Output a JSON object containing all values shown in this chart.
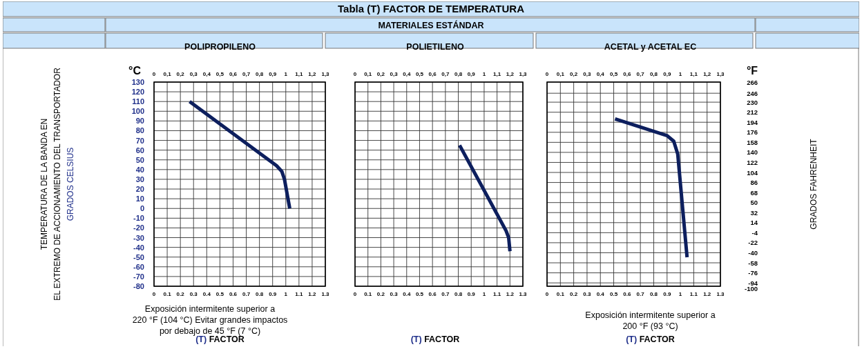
{
  "chart_data": [
    {
      "type": "other",
      "title": "Tabla (T) FACTOR DE TEMPERATURA",
      "subtitle": "MATERIALES ESTÁNDAR"
    },
    {
      "type": "line",
      "title": "POLIPROPILENO",
      "xlabel": "(T) FACTOR",
      "ylabel": "TEMPERATURA DE LA BANDA EN\nEL EXTREMO DE ACCIONAMIENTO DEL TRANSPORTADOR\nGRADOS CELSIUS",
      "grid": true,
      "xlim": [
        0,
        1.3
      ],
      "xticks": [
        0,
        0.1,
        0.2,
        0.3,
        0.4,
        0.5,
        0.6,
        0.7,
        0.8,
        0.9,
        1,
        1.1,
        1.2,
        1.3
      ],
      "x2lim": [
        0,
        1.3
      ],
      "x2ticks": [
        {
          "value": 0,
          "label": "0"
        },
        {
          "value": 0.1,
          "label": "0,1"
        },
        {
          "value": 0.2,
          "label": "0,2"
        },
        {
          "value": 0.3,
          "label": "0,3"
        },
        {
          "value": 0.4,
          "label": "0,4"
        },
        {
          "value": 0.5,
          "label": "0,5"
        },
        {
          "value": 0.6,
          "label": "0,6"
        },
        {
          "value": 0.7,
          "label": "0,7"
        },
        {
          "value": 0.8,
          "label": "0,8"
        },
        {
          "value": 0.9,
          "label": "0,9"
        },
        {
          "value": 1,
          "label": "1"
        },
        {
          "value": 1.1,
          "label": "1,1"
        },
        {
          "value": 1.2,
          "label": "1,2"
        },
        {
          "value": 1.3,
          "label": "1,3"
        }
      ],
      "ylim": [
        -80,
        130
      ],
      "yticks": [
        -80,
        -70,
        -60,
        -50,
        -40,
        -30,
        -20,
        -10,
        0,
        10,
        20,
        30,
        40,
        50,
        60,
        70,
        80,
        90,
        100,
        110,
        120,
        130
      ],
      "annotations": [
        "°C",
        "Exposición intermitente superior a\n220 °F (104 °C) Evitar grandes impactos\npor debajo de 45 °F (7 °C)"
      ],
      "series": [
        {
          "color": "#0d1f5e",
          "x": [
            0.27,
            0.93,
            0.97,
            0.99,
            1.03
          ],
          "values": [
            110,
            44,
            38,
            30,
            0
          ]
        }
      ]
    },
    {
      "type": "line",
      "title": "POLIETILENO",
      "xlabel": "(T) FACTOR",
      "grid": true,
      "tick_labels": "x",
      "xlim": [
        0,
        1.3
      ],
      "xticks": [
        0,
        0.1,
        0.2,
        0.3,
        0.4,
        0.5,
        0.6,
        0.7,
        0.8,
        0.9,
        1,
        1.1,
        1.2,
        1.3
      ],
      "x2lim": [
        0,
        1.3
      ],
      "x2ticks": [
        {
          "value": 0,
          "label": "0"
        },
        {
          "value": 0.1,
          "label": "0,1"
        },
        {
          "value": 0.2,
          "label": "0,2"
        },
        {
          "value": 0.3,
          "label": "0,3"
        },
        {
          "value": 0.4,
          "label": "0,4"
        },
        {
          "value": 0.5,
          "label": "0,5"
        },
        {
          "value": 0.6,
          "label": "0,6"
        },
        {
          "value": 0.7,
          "label": "0,7"
        },
        {
          "value": 0.8,
          "label": "0,8"
        },
        {
          "value": 0.9,
          "label": "0,9"
        },
        {
          "value": 1,
          "label": "1"
        },
        {
          "value": 1.1,
          "label": "1,1"
        },
        {
          "value": 1.2,
          "label": "1,2"
        },
        {
          "value": 1.3,
          "label": "1,3"
        }
      ],
      "ylim": [
        -80,
        130
      ],
      "yticks": [
        -80,
        -70,
        -60,
        -50,
        -40,
        -30,
        -20,
        -10,
        0,
        10,
        20,
        30,
        40,
        50,
        60,
        70,
        80,
        90,
        100,
        110,
        120,
        130
      ],
      "series": [
        {
          "color": "#0d1f5e",
          "x": [
            0.81,
            1.17,
            1.19,
            1.2
          ],
          "values": [
            65,
            -23,
            -30,
            -44
          ]
        }
      ]
    },
    {
      "type": "line",
      "title": "ACETAL y ACETAL EC",
      "xlabel": "(T) FACTOR",
      "y2label": "GRADOS FAHRENHEIT",
      "grid": true,
      "xlim": [
        0,
        1.3
      ],
      "xticks": [
        0,
        0.1,
        0.2,
        0.3,
        0.4,
        0.5,
        0.6,
        0.7,
        0.8,
        0.9,
        1,
        1.1,
        1.2,
        1.3
      ],
      "x2lim": [
        0,
        1.3
      ],
      "x2ticks": [
        {
          "value": 0,
          "label": "0"
        },
        {
          "value": 0.1,
          "label": "0,1"
        },
        {
          "value": 0.2,
          "label": "0,2"
        },
        {
          "value": 0.3,
          "label": "0,3"
        },
        {
          "value": 0.4,
          "label": "0,4"
        },
        {
          "value": 0.5,
          "label": "0,5"
        },
        {
          "value": 0.6,
          "label": "0,6"
        },
        {
          "value": 0.7,
          "label": "0,7"
        },
        {
          "value": 0.8,
          "label": "0,8"
        },
        {
          "value": 0.9,
          "label": "0,9"
        },
        {
          "value": 1,
          "label": "1"
        },
        {
          "value": 1.1,
          "label": "1,1"
        },
        {
          "value": 1.2,
          "label": "1,2"
        },
        {
          "value": 1.3,
          "label": "1,3"
        }
      ],
      "y2lim": [
        -100,
        266
      ],
      "y2ticks": [
        -100,
        -94,
        -76,
        -58,
        -40,
        -22,
        -4,
        14,
        32,
        50,
        68,
        86,
        104,
        122,
        140,
        158,
        176,
        194,
        212,
        230,
        246,
        266
      ],
      "annotations": [
        "°F",
        "Exposición intermitente superior a\n200 °F (93 °C)"
      ],
      "series": [
        {
          "color": "#0d1f5e",
          "axis": "y2",
          "x": [
            0.51,
            0.9,
            0.95,
            0.98,
            1.05
          ],
          "values": [
            200,
            170,
            160,
            137,
            -48
          ]
        }
      ]
    }
  ]
}
